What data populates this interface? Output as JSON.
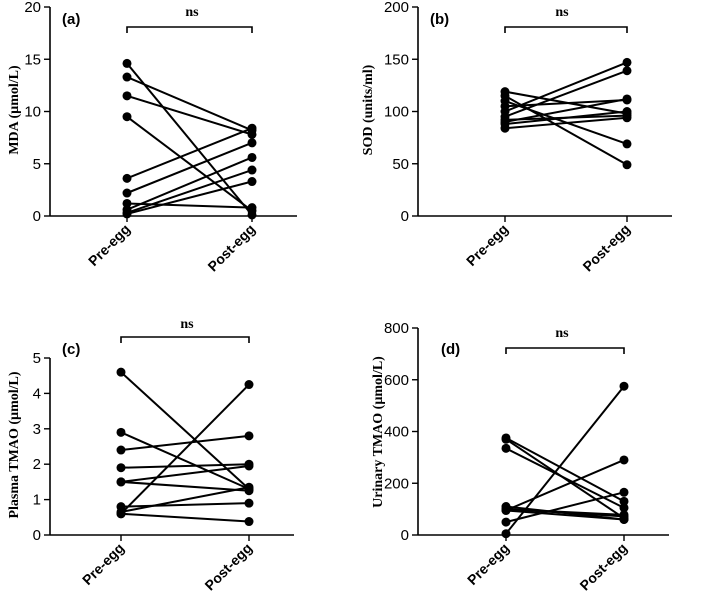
{
  "chart_data": [
    {
      "panel": "(a)",
      "type": "line",
      "ylabel": "MDA (µmol/L)",
      "ylim": [
        0,
        20
      ],
      "yticks": [
        "0",
        "5",
        "10",
        "15",
        "20"
      ],
      "categories": [
        "Pre-egg",
        "Post-egg"
      ],
      "significance": "ns",
      "pairs": [
        [
          14.6,
          0.1
        ],
        [
          13.3,
          8.2
        ],
        [
          11.5,
          7.8
        ],
        [
          9.5,
          0.5
        ],
        [
          3.6,
          8.4
        ],
        [
          2.2,
          7.0
        ],
        [
          1.2,
          0.8
        ],
        [
          0.6,
          5.6
        ],
        [
          0.3,
          4.4
        ],
        [
          0.2,
          3.3
        ]
      ]
    },
    {
      "panel": "(b)",
      "type": "line",
      "ylabel": "SOD (units/ml)",
      "ylim": [
        0,
        200
      ],
      "yticks": [
        "0",
        "50",
        "100",
        "150",
        "200"
      ],
      "categories": [
        "Pre-egg",
        "Post-egg"
      ],
      "significance": "ns",
      "pairs": [
        [
          119,
          98
        ],
        [
          115,
          49
        ],
        [
          110,
          69
        ],
        [
          105,
          111
        ],
        [
          100,
          147
        ],
        [
          95,
          139
        ],
        [
          92,
          96
        ],
        [
          90,
          112
        ],
        [
          88,
          100
        ],
        [
          84,
          94
        ]
      ]
    },
    {
      "panel": "(c)",
      "type": "line",
      "ylabel": "Plasma TMAO (µmol/L)",
      "ylim": [
        0,
        5
      ],
      "yticks": [
        "0",
        "1",
        "2",
        "3",
        "4",
        "5"
      ],
      "categories": [
        "Pre-egg",
        "Post-egg"
      ],
      "significance": "ns",
      "pairs": [
        [
          4.6,
          1.3
        ],
        [
          2.9,
          1.3
        ],
        [
          2.4,
          2.8
        ],
        [
          1.9,
          2.0
        ],
        [
          1.5,
          1.95
        ],
        [
          1.5,
          1.25
        ],
        [
          0.8,
          0.9
        ],
        [
          0.65,
          1.35
        ],
        [
          0.6,
          4.25
        ],
        [
          0.6,
          0.38
        ]
      ]
    },
    {
      "panel": "(d)",
      "type": "line",
      "ylabel": "Urinary TMAO (µmol/L)",
      "ylim": [
        0,
        800
      ],
      "yticks": [
        "0",
        "200",
        "400",
        "600",
        "800"
      ],
      "categories": [
        "Pre-egg",
        "Post-egg"
      ],
      "significance": "ns",
      "pairs": [
        [
          375,
          130
        ],
        [
          370,
          65
        ],
        [
          335,
          105
        ],
        [
          110,
          60
        ],
        [
          100,
          72
        ],
        [
          95,
          290
        ],
        [
          100,
          78
        ],
        [
          95,
          60
        ],
        [
          50,
          165
        ],
        [
          5,
          575
        ]
      ]
    }
  ]
}
